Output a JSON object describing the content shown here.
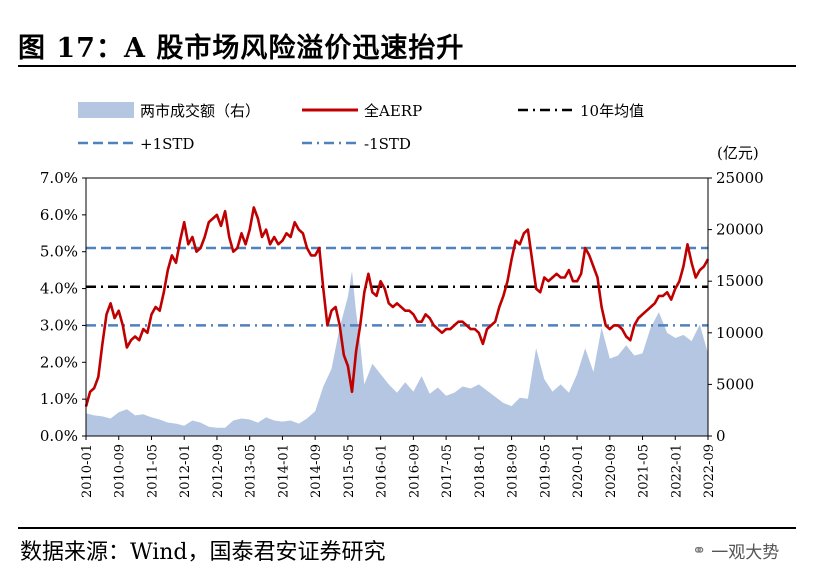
{
  "figure": {
    "title": "图 17：A 股市场风险溢价迅速抬升",
    "source": "数据来源：Wind，国泰君安证券研究",
    "watermark_icon": "wechat-icon",
    "watermark_text": "一观大势"
  },
  "chart_data": {
    "type": "line",
    "title": "A 股市场风险溢价迅速抬升",
    "x_start": "2010-01",
    "x_end": "2022-09",
    "x_ticks": [
      "2010-01",
      "2010-09",
      "2011-05",
      "2012-01",
      "2012-09",
      "2013-05",
      "2014-01",
      "2014-09",
      "2015-05",
      "2016-01",
      "2016-09",
      "2017-05",
      "2018-01",
      "2018-09",
      "2019-05",
      "2020-01",
      "2020-09",
      "2021-05",
      "2022-01",
      "2022-09"
    ],
    "y_left": {
      "min": 0,
      "max": 7,
      "ticks": [
        "0.0%",
        "1.0%",
        "2.0%",
        "3.0%",
        "4.0%",
        "5.0%",
        "6.0%",
        "7.0%"
      ]
    },
    "y_right": {
      "unit": "(亿元)",
      "min": 0,
      "max": 25000,
      "ticks": [
        "0",
        "5000",
        "10000",
        "15000",
        "20000",
        "25000"
      ]
    },
    "legend": {
      "area": "两市成交额（右）",
      "aerp": "全AERP",
      "mean": "10年均值",
      "plus_std": "+1STD",
      "minus_std": "-1STD"
    },
    "colors": {
      "area": "#b4c6e2",
      "aerp": "#c00000",
      "mean": "#000000",
      "std": "#4f81bd"
    },
    "reference_lines": {
      "mean": 4.05,
      "plus_1std": 5.1,
      "minus_1std": 3.0
    },
    "series": [
      {
        "name": "全AERP",
        "axis": "left",
        "points": [
          [
            "2010-01",
            0.8
          ],
          [
            "2010-02",
            1.2
          ],
          [
            "2010-03",
            1.3
          ],
          [
            "2010-04",
            1.6
          ],
          [
            "2010-05",
            2.5
          ],
          [
            "2010-06",
            3.3
          ],
          [
            "2010-07",
            3.6
          ],
          [
            "2010-08",
            3.2
          ],
          [
            "2010-09",
            3.4
          ],
          [
            "2010-10",
            3.0
          ],
          [
            "2010-11",
            2.4
          ],
          [
            "2010-12",
            2.6
          ],
          [
            "2011-01",
            2.7
          ],
          [
            "2011-02",
            2.6
          ],
          [
            "2011-03",
            2.9
          ],
          [
            "2011-04",
            2.8
          ],
          [
            "2011-05",
            3.3
          ],
          [
            "2011-06",
            3.5
          ],
          [
            "2011-07",
            3.4
          ],
          [
            "2011-08",
            3.9
          ],
          [
            "2011-09",
            4.5
          ],
          [
            "2011-10",
            4.9
          ],
          [
            "2011-11",
            4.7
          ],
          [
            "2011-12",
            5.3
          ],
          [
            "2012-01",
            5.8
          ],
          [
            "2012-02",
            5.2
          ],
          [
            "2012-03",
            5.4
          ],
          [
            "2012-04",
            5.0
          ],
          [
            "2012-05",
            5.1
          ],
          [
            "2012-06",
            5.4
          ],
          [
            "2012-07",
            5.8
          ],
          [
            "2012-08",
            5.9
          ],
          [
            "2012-09",
            6.0
          ],
          [
            "2012-10",
            5.7
          ],
          [
            "2012-11",
            6.1
          ],
          [
            "2012-12",
            5.4
          ],
          [
            "2013-01",
            5.0
          ],
          [
            "2013-02",
            5.1
          ],
          [
            "2013-03",
            5.5
          ],
          [
            "2013-04",
            5.2
          ],
          [
            "2013-05",
            5.6
          ],
          [
            "2013-06",
            6.2
          ],
          [
            "2013-07",
            5.9
          ],
          [
            "2013-08",
            5.4
          ],
          [
            "2013-09",
            5.6
          ],
          [
            "2013-10",
            5.2
          ],
          [
            "2013-11",
            5.4
          ],
          [
            "2013-12",
            5.2
          ],
          [
            "2014-01",
            5.3
          ],
          [
            "2014-02",
            5.5
          ],
          [
            "2014-03",
            5.4
          ],
          [
            "2014-04",
            5.8
          ],
          [
            "2014-05",
            5.6
          ],
          [
            "2014-06",
            5.5
          ],
          [
            "2014-07",
            5.1
          ],
          [
            "2014-08",
            4.9
          ],
          [
            "2014-09",
            4.9
          ],
          [
            "2014-10",
            5.1
          ],
          [
            "2014-11",
            4.0
          ],
          [
            "2014-12",
            3.0
          ],
          [
            "2015-01",
            3.4
          ],
          [
            "2015-02",
            3.5
          ],
          [
            "2015-03",
            3.0
          ],
          [
            "2015-04",
            2.2
          ],
          [
            "2015-05",
            1.9
          ],
          [
            "2015-06",
            1.2
          ],
          [
            "2015-07",
            2.3
          ],
          [
            "2015-08",
            3.0
          ],
          [
            "2015-09",
            3.9
          ],
          [
            "2015-10",
            4.4
          ],
          [
            "2015-11",
            3.9
          ],
          [
            "2015-12",
            3.8
          ],
          [
            "2016-01",
            4.2
          ],
          [
            "2016-02",
            4.0
          ],
          [
            "2016-03",
            3.6
          ],
          [
            "2016-04",
            3.5
          ],
          [
            "2016-05",
            3.6
          ],
          [
            "2016-06",
            3.5
          ],
          [
            "2016-07",
            3.4
          ],
          [
            "2016-08",
            3.4
          ],
          [
            "2016-09",
            3.3
          ],
          [
            "2016-10",
            3.1
          ],
          [
            "2016-11",
            3.1
          ],
          [
            "2016-12",
            3.3
          ],
          [
            "2017-01",
            3.2
          ],
          [
            "2017-02",
            3.0
          ],
          [
            "2017-03",
            2.9
          ],
          [
            "2017-04",
            2.8
          ],
          [
            "2017-05",
            2.9
          ],
          [
            "2017-06",
            2.9
          ],
          [
            "2017-07",
            3.0
          ],
          [
            "2017-08",
            3.1
          ],
          [
            "2017-09",
            3.1
          ],
          [
            "2017-10",
            3.0
          ],
          [
            "2017-11",
            2.9
          ],
          [
            "2017-12",
            2.9
          ],
          [
            "2018-01",
            2.8
          ],
          [
            "2018-02",
            2.5
          ],
          [
            "2018-03",
            2.9
          ],
          [
            "2018-04",
            3.0
          ],
          [
            "2018-05",
            3.1
          ],
          [
            "2018-06",
            3.5
          ],
          [
            "2018-07",
            3.8
          ],
          [
            "2018-08",
            4.2
          ],
          [
            "2018-09",
            4.8
          ],
          [
            "2018-10",
            5.3
          ],
          [
            "2018-11",
            5.2
          ],
          [
            "2018-12",
            5.5
          ],
          [
            "2019-01",
            5.6
          ],
          [
            "2019-02",
            4.8
          ],
          [
            "2019-03",
            4.0
          ],
          [
            "2019-04",
            3.9
          ],
          [
            "2019-05",
            4.3
          ],
          [
            "2019-06",
            4.2
          ],
          [
            "2019-07",
            4.3
          ],
          [
            "2019-08",
            4.4
          ],
          [
            "2019-09",
            4.3
          ],
          [
            "2019-10",
            4.3
          ],
          [
            "2019-11",
            4.5
          ],
          [
            "2019-12",
            4.2
          ],
          [
            "2020-01",
            4.2
          ],
          [
            "2020-02",
            4.4
          ],
          [
            "2020-03",
            5.1
          ],
          [
            "2020-04",
            4.9
          ],
          [
            "2020-05",
            4.6
          ],
          [
            "2020-06",
            4.3
          ],
          [
            "2020-07",
            3.5
          ],
          [
            "2020-08",
            3.0
          ],
          [
            "2020-09",
            2.9
          ],
          [
            "2020-10",
            3.0
          ],
          [
            "2020-11",
            3.0
          ],
          [
            "2020-12",
            2.9
          ],
          [
            "2021-01",
            2.7
          ],
          [
            "2021-02",
            2.6
          ],
          [
            "2021-03",
            3.0
          ],
          [
            "2021-04",
            3.2
          ],
          [
            "2021-05",
            3.3
          ],
          [
            "2021-06",
            3.4
          ],
          [
            "2021-07",
            3.5
          ],
          [
            "2021-08",
            3.6
          ],
          [
            "2021-09",
            3.8
          ],
          [
            "2021-10",
            3.8
          ],
          [
            "2021-11",
            3.9
          ],
          [
            "2021-12",
            3.7
          ],
          [
            "2022-01",
            4.0
          ],
          [
            "2022-02",
            4.2
          ],
          [
            "2022-03",
            4.6
          ],
          [
            "2022-04",
            5.2
          ],
          [
            "2022-05",
            4.7
          ],
          [
            "2022-06",
            4.3
          ],
          [
            "2022-07",
            4.5
          ],
          [
            "2022-08",
            4.6
          ],
          [
            "2022-09",
            4.8
          ]
        ]
      },
      {
        "name": "两市成交额（右）",
        "axis": "right",
        "points": [
          [
            "2010-01",
            2200
          ],
          [
            "2010-03",
            2000
          ],
          [
            "2010-05",
            1900
          ],
          [
            "2010-07",
            1700
          ],
          [
            "2010-09",
            2300
          ],
          [
            "2010-11",
            2600
          ],
          [
            "2011-01",
            2000
          ],
          [
            "2011-03",
            2100
          ],
          [
            "2011-05",
            1800
          ],
          [
            "2011-07",
            1600
          ],
          [
            "2011-09",
            1300
          ],
          [
            "2011-11",
            1200
          ],
          [
            "2012-01",
            1000
          ],
          [
            "2012-03",
            1500
          ],
          [
            "2012-05",
            1300
          ],
          [
            "2012-07",
            900
          ],
          [
            "2012-09",
            800
          ],
          [
            "2012-11",
            800
          ],
          [
            "2013-01",
            1500
          ],
          [
            "2013-03",
            1700
          ],
          [
            "2013-05",
            1600
          ],
          [
            "2013-07",
            1300
          ],
          [
            "2013-09",
            1800
          ],
          [
            "2013-11",
            1500
          ],
          [
            "2014-01",
            1400
          ],
          [
            "2014-03",
            1500
          ],
          [
            "2014-05",
            1200
          ],
          [
            "2014-07",
            1700
          ],
          [
            "2014-09",
            2400
          ],
          [
            "2014-11",
            4800
          ],
          [
            "2015-01",
            6500
          ],
          [
            "2015-03",
            10500
          ],
          [
            "2015-05",
            13500
          ],
          [
            "2015-06",
            16000
          ],
          [
            "2015-07",
            12000
          ],
          [
            "2015-08",
            9000
          ],
          [
            "2015-09",
            5000
          ],
          [
            "2015-11",
            7000
          ],
          [
            "2016-01",
            6000
          ],
          [
            "2016-03",
            5000
          ],
          [
            "2016-05",
            4200
          ],
          [
            "2016-07",
            5200
          ],
          [
            "2016-09",
            4300
          ],
          [
            "2016-11",
            5800
          ],
          [
            "2017-01",
            4100
          ],
          [
            "2017-03",
            4700
          ],
          [
            "2017-05",
            3900
          ],
          [
            "2017-07",
            4200
          ],
          [
            "2017-09",
            4800
          ],
          [
            "2017-11",
            4600
          ],
          [
            "2018-01",
            5000
          ],
          [
            "2018-03",
            4400
          ],
          [
            "2018-05",
            3800
          ],
          [
            "2018-07",
            3200
          ],
          [
            "2018-09",
            2900
          ],
          [
            "2018-11",
            3700
          ],
          [
            "2019-01",
            3600
          ],
          [
            "2019-03",
            8500
          ],
          [
            "2019-05",
            5500
          ],
          [
            "2019-07",
            4300
          ],
          [
            "2019-09",
            5000
          ],
          [
            "2019-11",
            4200
          ],
          [
            "2020-01",
            6000
          ],
          [
            "2020-03",
            8500
          ],
          [
            "2020-05",
            6200
          ],
          [
            "2020-07",
            10500
          ],
          [
            "2020-09",
            7500
          ],
          [
            "2020-11",
            7800
          ],
          [
            "2021-01",
            8800
          ],
          [
            "2021-03",
            7800
          ],
          [
            "2021-05",
            8000
          ],
          [
            "2021-07",
            10500
          ],
          [
            "2021-09",
            12000
          ],
          [
            "2021-11",
            10000
          ],
          [
            "2022-01",
            9500
          ],
          [
            "2022-03",
            9800
          ],
          [
            "2022-05",
            9200
          ],
          [
            "2022-07",
            10800
          ],
          [
            "2022-09",
            8000
          ]
        ]
      }
    ]
  }
}
